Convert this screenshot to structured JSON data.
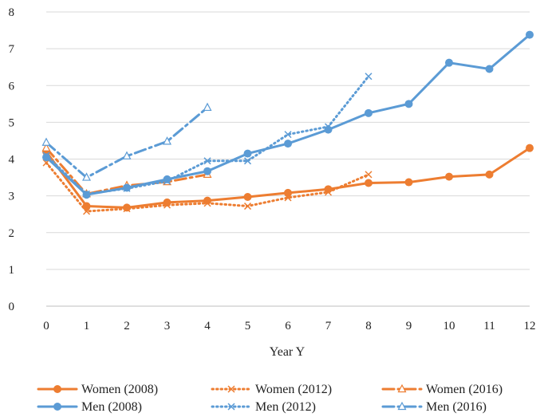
{
  "chart_data": {
    "type": "line",
    "title": "",
    "xlabel": "Year Y",
    "ylabel": "",
    "x": [
      0,
      1,
      2,
      3,
      4,
      5,
      6,
      7,
      8,
      9,
      10,
      11,
      12
    ],
    "xlim": [
      0,
      12
    ],
    "ylim": [
      0,
      8
    ],
    "yticks": [
      0,
      1,
      2,
      3,
      4,
      5,
      6,
      7,
      8
    ],
    "grid": true,
    "legend_position": "bottom",
    "series": [
      {
        "name": "Women (2008)",
        "color": "#ED7D31",
        "line": "solid",
        "marker": "circle",
        "x": [
          0,
          1,
          2,
          3,
          4,
          5,
          6,
          7,
          8,
          9,
          10,
          11,
          12
        ],
        "values": [
          4.2,
          2.72,
          2.68,
          2.82,
          2.87,
          2.97,
          3.08,
          3.18,
          3.35,
          3.37,
          3.52,
          3.58,
          4.3
        ]
      },
      {
        "name": "Women (2012)",
        "color": "#ED7D31",
        "line": "dotted",
        "marker": "x",
        "x": [
          0,
          1,
          2,
          3,
          4,
          5,
          6,
          7,
          8
        ],
        "values": [
          3.9,
          2.58,
          2.65,
          2.75,
          2.8,
          2.72,
          2.95,
          3.1,
          3.58
        ]
      },
      {
        "name": "Women (2016)",
        "color": "#ED7D31",
        "line": "dashdot",
        "marker": "triangle",
        "x": [
          0,
          1,
          2,
          3,
          4
        ],
        "values": [
          4.3,
          3.05,
          3.28,
          3.38,
          3.58
        ]
      },
      {
        "name": "Men (2008)",
        "color": "#5B9BD5",
        "line": "solid",
        "marker": "circle",
        "x": [
          0,
          1,
          2,
          3,
          4,
          5,
          6,
          7,
          8,
          9,
          10,
          11,
          12
        ],
        "values": [
          4.05,
          3.03,
          3.22,
          3.45,
          3.67,
          4.15,
          4.42,
          4.8,
          5.25,
          5.5,
          6.62,
          6.45,
          7.38
        ]
      },
      {
        "name": "Men (2012)",
        "color": "#5B9BD5",
        "line": "dotted",
        "marker": "x",
        "x": [
          0,
          1,
          2,
          3,
          4,
          5,
          6,
          7,
          8
        ],
        "values": [
          4.1,
          3.05,
          3.2,
          3.4,
          3.95,
          3.95,
          4.67,
          4.88,
          6.25
        ]
      },
      {
        "name": "Men (2016)",
        "color": "#5B9BD5",
        "line": "dashdot",
        "marker": "triangle",
        "x": [
          0,
          1,
          2,
          3,
          4
        ],
        "values": [
          4.45,
          3.5,
          4.08,
          4.48,
          5.4
        ]
      }
    ]
  }
}
